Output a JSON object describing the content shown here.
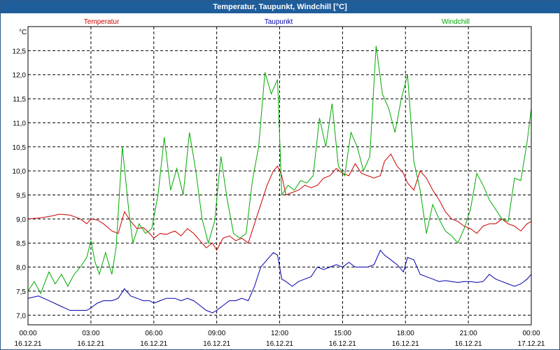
{
  "chart_data": {
    "type": "line",
    "title": "Temperatur, Taupunkt, Windchill [°C]",
    "ylabel": "°C",
    "xlabel": "",
    "ylim": [
      6.8,
      13.0
    ],
    "xlim": [
      0,
      24
    ],
    "yticks": [
      "7,0",
      "7,5",
      "8,0",
      "8,5",
      "9,0",
      "9,5",
      "10,0",
      "10,5",
      "11,0",
      "11,5",
      "12,0",
      "12,5"
    ],
    "xticks": [
      {
        "time": "00:00",
        "date": "16.12.21"
      },
      {
        "time": "03:00",
        "date": "16.12.21"
      },
      {
        "time": "06:00",
        "date": "16.12.21"
      },
      {
        "time": "09:00",
        "date": "16.12.21"
      },
      {
        "time": "12:00",
        "date": "16.12.21"
      },
      {
        "time": "15:00",
        "date": "16.12.21"
      },
      {
        "time": "18:00",
        "date": "16.12.21"
      },
      {
        "time": "21:00",
        "date": "16.12.21"
      },
      {
        "time": "00:00",
        "date": "17.12.21"
      }
    ],
    "grid": true,
    "series": [
      {
        "name": "Temperatur",
        "color": "#cc0000",
        "points": [
          [
            0,
            9.0
          ],
          [
            0.5,
            9.02
          ],
          [
            1,
            9.05
          ],
          [
            1.5,
            9.1
          ],
          [
            2,
            9.08
          ],
          [
            2.5,
            9.0
          ],
          [
            2.8,
            8.9
          ],
          [
            3,
            9.0
          ],
          [
            3.3,
            8.98
          ],
          [
            3.6,
            8.9
          ],
          [
            4,
            8.75
          ],
          [
            4.3,
            8.7
          ],
          [
            4.6,
            9.15
          ],
          [
            4.9,
            8.95
          ],
          [
            5.2,
            8.8
          ],
          [
            5.5,
            8.82
          ],
          [
            5.8,
            8.7
          ],
          [
            6,
            8.6
          ],
          [
            6.3,
            8.7
          ],
          [
            6.6,
            8.68
          ],
          [
            7,
            8.75
          ],
          [
            7.3,
            8.65
          ],
          [
            7.6,
            8.8
          ],
          [
            7.9,
            8.7
          ],
          [
            8.2,
            8.55
          ],
          [
            8.5,
            8.4
          ],
          [
            8.8,
            8.5
          ],
          [
            9.0,
            8.35
          ],
          [
            9.3,
            8.6
          ],
          [
            9.6,
            8.65
          ],
          [
            9.9,
            8.55
          ],
          [
            10.2,
            8.6
          ],
          [
            10.5,
            8.5
          ],
          [
            10.8,
            8.9
          ],
          [
            11.1,
            9.3
          ],
          [
            11.4,
            9.7
          ],
          [
            11.7,
            10.0
          ],
          [
            11.9,
            10.1
          ],
          [
            12.1,
            9.9
          ],
          [
            12.3,
            9.5
          ],
          [
            12.6,
            9.55
          ],
          [
            12.9,
            9.6
          ],
          [
            13.2,
            9.7
          ],
          [
            13.5,
            9.65
          ],
          [
            13.8,
            9.7
          ],
          [
            14.1,
            9.85
          ],
          [
            14.4,
            9.9
          ],
          [
            14.7,
            10.05
          ],
          [
            15.0,
            9.95
          ],
          [
            15.3,
            9.9
          ],
          [
            15.6,
            10.15
          ],
          [
            15.9,
            9.95
          ],
          [
            16.2,
            9.9
          ],
          [
            16.5,
            9.85
          ],
          [
            16.8,
            9.9
          ],
          [
            17.0,
            10.2
          ],
          [
            17.3,
            10.35
          ],
          [
            17.6,
            10.1
          ],
          [
            17.9,
            9.95
          ],
          [
            18.1,
            9.75
          ],
          [
            18.4,
            9.6
          ],
          [
            18.7,
            10.0
          ],
          [
            19.0,
            9.85
          ],
          [
            19.3,
            9.6
          ],
          [
            19.6,
            9.4
          ],
          [
            19.9,
            9.15
          ],
          [
            20.2,
            9.0
          ],
          [
            20.5,
            8.95
          ],
          [
            20.8,
            8.85
          ],
          [
            21.1,
            8.8
          ],
          [
            21.4,
            8.7
          ],
          [
            21.7,
            8.85
          ],
          [
            22.0,
            8.9
          ],
          [
            22.3,
            8.9
          ],
          [
            22.6,
            9.0
          ],
          [
            22.9,
            8.9
          ],
          [
            23.2,
            8.85
          ],
          [
            23.5,
            8.75
          ],
          [
            23.8,
            8.9
          ],
          [
            24,
            8.95
          ]
        ]
      },
      {
        "name": "Taupunkt",
        "color": "#0000aa",
        "points": [
          [
            0,
            7.35
          ],
          [
            0.5,
            7.4
          ],
          [
            1,
            7.3
          ],
          [
            1.5,
            7.2
          ],
          [
            2,
            7.1
          ],
          [
            2.5,
            7.1
          ],
          [
            2.8,
            7.1
          ],
          [
            3,
            7.15
          ],
          [
            3.3,
            7.25
          ],
          [
            3.6,
            7.3
          ],
          [
            4,
            7.3
          ],
          [
            4.3,
            7.35
          ],
          [
            4.6,
            7.55
          ],
          [
            4.9,
            7.4
          ],
          [
            5.2,
            7.35
          ],
          [
            5.5,
            7.3
          ],
          [
            5.8,
            7.3
          ],
          [
            6,
            7.25
          ],
          [
            6.3,
            7.3
          ],
          [
            6.6,
            7.35
          ],
          [
            7,
            7.35
          ],
          [
            7.3,
            7.3
          ],
          [
            7.6,
            7.35
          ],
          [
            7.9,
            7.3
          ],
          [
            8.2,
            7.2
          ],
          [
            8.5,
            7.1
          ],
          [
            8.8,
            7.05
          ],
          [
            9.0,
            7.1
          ],
          [
            9.3,
            7.2
          ],
          [
            9.6,
            7.3
          ],
          [
            9.9,
            7.3
          ],
          [
            10.2,
            7.35
          ],
          [
            10.5,
            7.3
          ],
          [
            10.8,
            7.6
          ],
          [
            11.1,
            8.0
          ],
          [
            11.4,
            8.15
          ],
          [
            11.7,
            8.3
          ],
          [
            11.9,
            8.25
          ],
          [
            12.1,
            7.75
          ],
          [
            12.3,
            7.7
          ],
          [
            12.6,
            7.6
          ],
          [
            12.9,
            7.7
          ],
          [
            13.2,
            7.75
          ],
          [
            13.5,
            7.8
          ],
          [
            13.8,
            8.0
          ],
          [
            14.1,
            7.95
          ],
          [
            14.4,
            8.0
          ],
          [
            14.7,
            8.05
          ],
          [
            15.0,
            8.0
          ],
          [
            15.3,
            8.1
          ],
          [
            15.6,
            8.0
          ],
          [
            15.9,
            8.0
          ],
          [
            16.2,
            8.0
          ],
          [
            16.5,
            8.05
          ],
          [
            16.8,
            8.35
          ],
          [
            17.0,
            8.25
          ],
          [
            17.3,
            8.15
          ],
          [
            17.6,
            8.05
          ],
          [
            17.9,
            7.9
          ],
          [
            18.1,
            8.2
          ],
          [
            18.4,
            8.15
          ],
          [
            18.7,
            7.85
          ],
          [
            19.0,
            7.8
          ],
          [
            19.3,
            7.75
          ],
          [
            19.6,
            7.7
          ],
          [
            19.9,
            7.72
          ],
          [
            20.2,
            7.7
          ],
          [
            20.5,
            7.68
          ],
          [
            20.8,
            7.7
          ],
          [
            21.1,
            7.7
          ],
          [
            21.4,
            7.68
          ],
          [
            21.7,
            7.7
          ],
          [
            22.0,
            7.85
          ],
          [
            22.3,
            7.75
          ],
          [
            22.6,
            7.7
          ],
          [
            22.9,
            7.65
          ],
          [
            23.2,
            7.6
          ],
          [
            23.5,
            7.65
          ],
          [
            23.8,
            7.75
          ],
          [
            24,
            7.85
          ]
        ]
      },
      {
        "name": "Windchill",
        "color": "#00aa00",
        "points": [
          [
            0,
            7.5
          ],
          [
            0.3,
            7.7
          ],
          [
            0.6,
            7.45
          ],
          [
            1,
            7.9
          ],
          [
            1.3,
            7.65
          ],
          [
            1.6,
            7.85
          ],
          [
            1.9,
            7.6
          ],
          [
            2.2,
            7.85
          ],
          [
            2.5,
            8.0
          ],
          [
            2.8,
            8.2
          ],
          [
            3,
            8.55
          ],
          [
            3.2,
            8.1
          ],
          [
            3.4,
            7.85
          ],
          [
            3.7,
            8.3
          ],
          [
            4,
            7.85
          ],
          [
            4.2,
            8.4
          ],
          [
            4.5,
            10.5
          ],
          [
            4.8,
            9.2
          ],
          [
            5.0,
            8.5
          ],
          [
            5.3,
            8.9
          ],
          [
            5.6,
            8.7
          ],
          [
            5.9,
            8.8
          ],
          [
            6.2,
            9.5
          ],
          [
            6.5,
            10.7
          ],
          [
            6.8,
            9.6
          ],
          [
            7.1,
            10.05
          ],
          [
            7.4,
            9.5
          ],
          [
            7.7,
            10.8
          ],
          [
            8.0,
            10.0
          ],
          [
            8.3,
            9.0
          ],
          [
            8.6,
            8.5
          ],
          [
            8.9,
            8.95
          ],
          [
            9.2,
            10.3
          ],
          [
            9.5,
            9.4
          ],
          [
            9.8,
            8.7
          ],
          [
            10.1,
            8.6
          ],
          [
            10.4,
            8.7
          ],
          [
            10.7,
            9.8
          ],
          [
            11.0,
            10.5
          ],
          [
            11.3,
            12.05
          ],
          [
            11.6,
            11.6
          ],
          [
            11.9,
            11.9
          ],
          [
            12.1,
            9.5
          ],
          [
            12.4,
            9.7
          ],
          [
            12.7,
            9.6
          ],
          [
            13.0,
            9.8
          ],
          [
            13.3,
            9.75
          ],
          [
            13.6,
            9.9
          ],
          [
            13.9,
            11.1
          ],
          [
            14.2,
            10.5
          ],
          [
            14.5,
            11.4
          ],
          [
            14.8,
            10.1
          ],
          [
            15.1,
            9.9
          ],
          [
            15.4,
            10.8
          ],
          [
            15.7,
            10.5
          ],
          [
            16.0,
            10.0
          ],
          [
            16.3,
            10.3
          ],
          [
            16.6,
            12.6
          ],
          [
            16.9,
            11.6
          ],
          [
            17.2,
            11.3
          ],
          [
            17.5,
            10.8
          ],
          [
            17.8,
            11.5
          ],
          [
            18.1,
            12.0
          ],
          [
            18.4,
            10.2
          ],
          [
            18.7,
            9.6
          ],
          [
            19.0,
            8.7
          ],
          [
            19.3,
            9.3
          ],
          [
            19.6,
            9.0
          ],
          [
            19.9,
            8.75
          ],
          [
            20.2,
            8.65
          ],
          [
            20.5,
            8.5
          ],
          [
            20.8,
            8.8
          ],
          [
            21.1,
            9.2
          ],
          [
            21.4,
            9.95
          ],
          [
            21.7,
            9.7
          ],
          [
            22.0,
            9.4
          ],
          [
            22.3,
            9.2
          ],
          [
            22.6,
            9.0
          ],
          [
            22.9,
            8.95
          ],
          [
            23.2,
            9.85
          ],
          [
            23.5,
            9.8
          ],
          [
            23.8,
            10.6
          ],
          [
            24,
            11.3
          ]
        ]
      }
    ]
  }
}
